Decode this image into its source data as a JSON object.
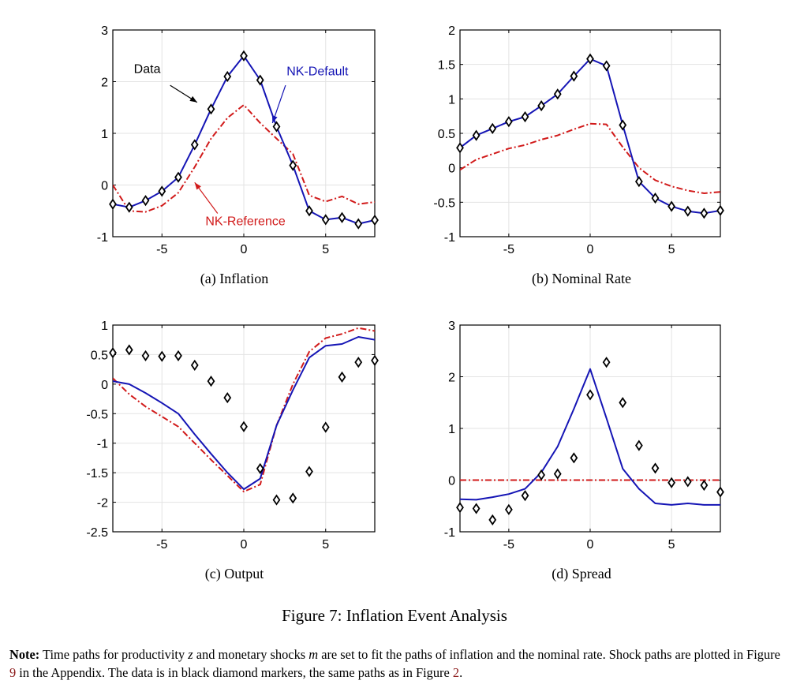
{
  "figure": {
    "title": "Figure 7: Inflation Event Analysis",
    "subcaptions": [
      "(a)  Inflation",
      "(b)  Nominal Rate",
      "(c)  Output",
      "(d)  Spread"
    ]
  },
  "note": {
    "label": "Note:",
    "text1": " Time paths for productivity ",
    "var_z": "z",
    "text2": " and monetary shocks ",
    "var_m": "m",
    "text3": " are set to fit the paths of inflation and the nominal rate. Shock paths are plotted in Figure ",
    "ref1": "9",
    "text4": " in the Appendix. The data is in black diamond markers, the same paths as in Figure ",
    "ref2": "2",
    "text5": "."
  },
  "colors": {
    "data": "#000000",
    "nk_default": "#1515b5",
    "nk_reference": "#d11a1a",
    "grid": "#e3e3e3"
  },
  "chart_data": [
    {
      "id": "a",
      "type": "line",
      "title": "(a)  Inflation",
      "x": [
        -8,
        -7,
        -6,
        -5,
        -4,
        -3,
        -2,
        -1,
        0,
        1,
        2,
        3,
        4,
        5,
        6,
        7,
        8
      ],
      "xlim": [
        -8,
        8
      ],
      "ylim": [
        -1,
        3
      ],
      "xticks": [
        -5,
        0,
        5
      ],
      "yticks": [
        -1,
        0,
        1,
        2,
        3
      ],
      "grid": true,
      "series": [
        {
          "name": "NK-Reference",
          "style": "dashdot",
          "color": "#d11a1a",
          "values": [
            0.0,
            -0.5,
            -0.52,
            -0.4,
            -0.15,
            0.35,
            0.9,
            1.3,
            1.55,
            1.2,
            0.9,
            0.6,
            -0.2,
            -0.32,
            -0.22,
            -0.37,
            -0.33
          ]
        },
        {
          "name": "NK-Default",
          "style": "solid",
          "color": "#1515b5",
          "values": [
            -0.37,
            -0.43,
            -0.3,
            -0.12,
            0.15,
            0.78,
            1.47,
            2.1,
            2.5,
            2.03,
            1.13,
            0.38,
            -0.5,
            -0.67,
            -0.63,
            -0.75,
            -0.68
          ]
        },
        {
          "name": "Data",
          "style": "marker",
          "color": "#000000",
          "values": [
            -0.37,
            -0.43,
            -0.3,
            -0.12,
            0.15,
            0.78,
            1.47,
            2.1,
            2.5,
            2.03,
            1.13,
            0.38,
            -0.5,
            -0.67,
            -0.63,
            -0.75,
            -0.68
          ]
        }
      ],
      "annotations": [
        {
          "text": "Data",
          "color": "#000000",
          "x": -5.9,
          "y": 2.17,
          "ax": -4.5,
          "ay": 1.93,
          "bx": -2.85,
          "by": 1.6
        },
        {
          "text": "NK-Default",
          "color": "#1515b5",
          "x": 4.5,
          "y": 2.12,
          "ax": 2.55,
          "ay": 1.93,
          "bx": 1.75,
          "by": 1.2
        },
        {
          "text": "NK-Reference",
          "color": "#d11a1a",
          "x": 0.1,
          "y": -0.78,
          "ax": -1.6,
          "ay": -0.55,
          "bx": -3.0,
          "by": 0.05
        }
      ]
    },
    {
      "id": "b",
      "type": "line",
      "title": "(b)  Nominal Rate",
      "x": [
        -8,
        -7,
        -6,
        -5,
        -4,
        -3,
        -2,
        -1,
        0,
        1,
        2,
        3,
        4,
        5,
        6,
        7,
        8
      ],
      "xlim": [
        -8,
        8
      ],
      "ylim": [
        -1,
        2
      ],
      "xticks": [
        -5,
        0,
        5
      ],
      "yticks": [
        -1,
        -0.5,
        0,
        0.5,
        1,
        1.5,
        2
      ],
      "grid": true,
      "series": [
        {
          "name": "NK-Reference",
          "style": "dashdot",
          "color": "#d11a1a",
          "values": [
            -0.03,
            0.12,
            0.2,
            0.28,
            0.33,
            0.41,
            0.47,
            0.56,
            0.64,
            0.63,
            0.3,
            0.0,
            -0.18,
            -0.27,
            -0.33,
            -0.37,
            -0.35
          ]
        },
        {
          "name": "NK-Default",
          "style": "solid",
          "color": "#1515b5",
          "values": [
            0.29,
            0.47,
            0.57,
            0.67,
            0.74,
            0.9,
            1.07,
            1.33,
            1.58,
            1.48,
            0.62,
            -0.2,
            -0.44,
            -0.56,
            -0.63,
            -0.66,
            -0.62
          ]
        },
        {
          "name": "Data",
          "style": "marker",
          "color": "#000000",
          "values": [
            0.29,
            0.47,
            0.57,
            0.67,
            0.74,
            0.9,
            1.07,
            1.33,
            1.58,
            1.48,
            0.62,
            -0.2,
            -0.44,
            -0.56,
            -0.63,
            -0.66,
            -0.62
          ]
        }
      ]
    },
    {
      "id": "c",
      "type": "line",
      "title": "(c)  Output",
      "x": [
        -8,
        -7,
        -6,
        -5,
        -4,
        -3,
        -2,
        -1,
        0,
        1,
        2,
        3,
        4,
        5,
        6,
        7,
        8
      ],
      "xlim": [
        -8,
        8
      ],
      "ylim": [
        -2.5,
        1
      ],
      "xticks": [
        -5,
        0,
        5
      ],
      "yticks": [
        -2.5,
        -2,
        -1.5,
        -1,
        -0.5,
        0,
        0.5,
        1
      ],
      "grid": true,
      "series": [
        {
          "name": "NK-Reference",
          "style": "dashdot",
          "color": "#d11a1a",
          "values": [
            0.1,
            -0.17,
            -0.38,
            -0.55,
            -0.72,
            -1.0,
            -1.28,
            -1.55,
            -1.82,
            -1.7,
            -0.7,
            0.0,
            0.55,
            0.78,
            0.85,
            0.95,
            0.9
          ]
        },
        {
          "name": "NK-Default",
          "style": "solid",
          "color": "#1515b5",
          "values": [
            0.05,
            0.0,
            -0.15,
            -0.32,
            -0.5,
            -0.85,
            -1.18,
            -1.5,
            -1.78,
            -1.6,
            -0.7,
            -0.1,
            0.45,
            0.65,
            0.68,
            0.8,
            0.75
          ]
        },
        {
          "name": "Data",
          "style": "marker",
          "color": "#000000",
          "values": [
            0.53,
            0.58,
            0.48,
            0.47,
            0.48,
            0.32,
            0.05,
            -0.23,
            -0.72,
            -1.43,
            -1.96,
            -1.93,
            -1.48,
            -0.73,
            0.12,
            0.37,
            0.4
          ]
        }
      ]
    },
    {
      "id": "d",
      "type": "line",
      "title": "(d)  Spread",
      "x": [
        -8,
        -7,
        -6,
        -5,
        -4,
        -3,
        -2,
        -1,
        0,
        1,
        2,
        3,
        4,
        5,
        6,
        7,
        8
      ],
      "xlim": [
        -8,
        8
      ],
      "ylim": [
        -1,
        3
      ],
      "xticks": [
        -5,
        0,
        5
      ],
      "yticks": [
        -1,
        0,
        1,
        2,
        3
      ],
      "grid": true,
      "series": [
        {
          "name": "NK-Reference",
          "style": "dashdot",
          "color": "#d11a1a",
          "values": [
            0,
            0,
            0,
            0,
            0,
            0,
            0,
            0,
            0,
            0,
            0,
            0,
            0,
            0,
            0,
            0,
            0
          ]
        },
        {
          "name": "NK-Default",
          "style": "solid",
          "color": "#1515b5",
          "values": [
            -0.37,
            -0.38,
            -0.33,
            -0.27,
            -0.17,
            0.15,
            0.65,
            1.38,
            2.15,
            1.2,
            0.22,
            -0.17,
            -0.45,
            -0.48,
            -0.45,
            -0.48,
            -0.48
          ]
        },
        {
          "name": "Data",
          "style": "marker",
          "color": "#000000",
          "values": [
            -0.53,
            -0.55,
            -0.77,
            -0.57,
            -0.3,
            0.1,
            0.12,
            0.43,
            1.65,
            2.28,
            1.5,
            0.67,
            0.23,
            -0.05,
            -0.03,
            -0.1,
            -0.23
          ]
        }
      ]
    }
  ]
}
